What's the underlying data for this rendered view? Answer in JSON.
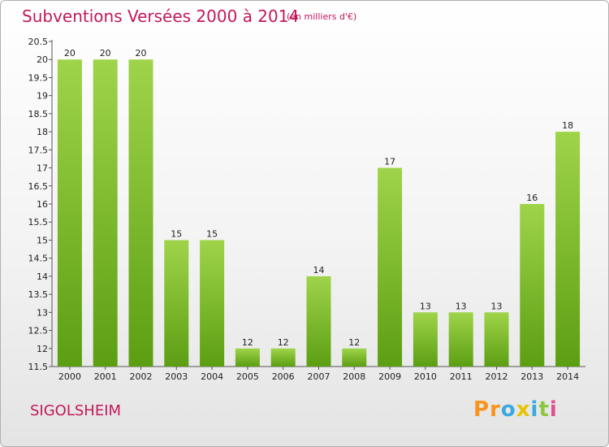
{
  "title": "Subventions Versées 2000 à 2014",
  "subtitle": "(en milliers d'€)",
  "commune": "SIGOLSHEIM",
  "logo": {
    "letters": [
      "P",
      "r",
      "o",
      "x",
      "i",
      "t",
      "i"
    ],
    "colors": [
      "#f7941d",
      "#f7941d",
      "#3aa9e0",
      "#e8c300",
      "#3aa9e0",
      "#8dc63f",
      "#e0508c"
    ]
  },
  "colors": {
    "bar_top": "#9fd44a",
    "bar_bottom": "#5c9e12",
    "text": "#222222",
    "accent": "#c2185b"
  },
  "chart_data": {
    "type": "bar",
    "categories": [
      "2000",
      "2001",
      "2002",
      "2003",
      "2004",
      "2005",
      "2006",
      "2007",
      "2008",
      "2009",
      "2010",
      "2011",
      "2012",
      "2013",
      "2014"
    ],
    "values": [
      20,
      20,
      20,
      15,
      15,
      12,
      12,
      14,
      12,
      17,
      13,
      13,
      13,
      16,
      18
    ],
    "ylim": [
      11.5,
      20.5
    ],
    "yticks": [
      "11.5",
      "12",
      "12.5",
      "13",
      "13.5",
      "14",
      "14.5",
      "15",
      "15.5",
      "16",
      "16.5",
      "17",
      "17.5",
      "18",
      "18.5",
      "19",
      "19.5",
      "20",
      "20.5"
    ],
    "grid": false,
    "legend": "none"
  }
}
